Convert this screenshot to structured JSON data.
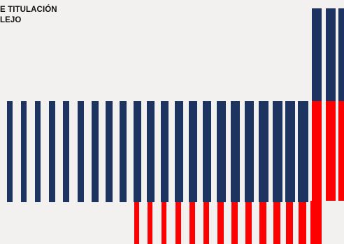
{
  "heading": {
    "line1": "E TITULACIÓN",
    "line2": "LEJO"
  },
  "colors": {
    "background": "#f2f1ef",
    "navy": "#1d3461",
    "red": "#ff0000",
    "text": "#111111"
  },
  "graphic": {
    "description_id": "barcode-stripes",
    "stripe_count": 25
  }
}
